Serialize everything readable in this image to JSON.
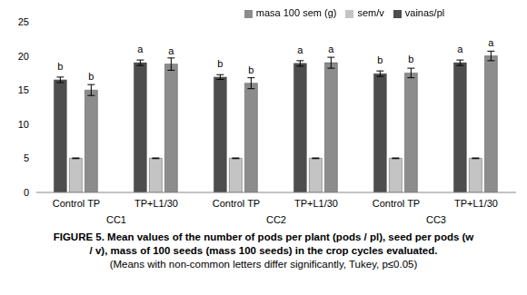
{
  "chart_data": {
    "type": "bar",
    "categories": [
      "Control TP",
      "TP+L1/30",
      "Control TP",
      "TP+L1/30",
      "Control TP",
      "TP+L1/30"
    ],
    "groups": [
      "CC1",
      "CC2",
      "CC3"
    ],
    "series": [
      {
        "name": "vainas/pl",
        "color": "#4d4d4d",
        "values": [
          16.5,
          19.0,
          16.9,
          18.9,
          17.4,
          19.0
        ],
        "errors": [
          0.4,
          0.4,
          0.35,
          0.4,
          0.4,
          0.4
        ],
        "letters": [
          "b",
          "a",
          "b",
          "a",
          "b",
          "a"
        ]
      },
      {
        "name": "sem/v",
        "color": "#c4c4c4",
        "values": [
          5,
          5,
          5,
          5,
          5,
          5
        ],
        "errors": [
          0.05,
          0.05,
          0.05,
          0.05,
          0.05,
          0.05
        ]
      },
      {
        "name": "masa 100 sem (g)",
        "color": "#8c8c8c",
        "values": [
          15.0,
          18.8,
          16.0,
          19.0,
          17.5,
          20.0
        ],
        "errors": [
          0.8,
          0.9,
          0.8,
          0.8,
          0.7,
          0.7
        ],
        "letters": [
          "b",
          "a",
          "b",
          "a",
          "b",
          "a"
        ]
      }
    ],
    "ylim": [
      0,
      25
    ],
    "yticks": [
      0,
      5,
      10,
      15,
      20,
      25
    ],
    "grid": false,
    "legend": "top",
    "caption": [
      "FIGURE 5. Mean values of the number of pods per plant (pods / pl), seed per pods (w",
      "/ v), mass of 100 seeds (mass 100 seeds) in the crop cycles evaluated.",
      "(Means with non-common letters differ significantly, Tukey, p≤0.05)"
    ]
  }
}
